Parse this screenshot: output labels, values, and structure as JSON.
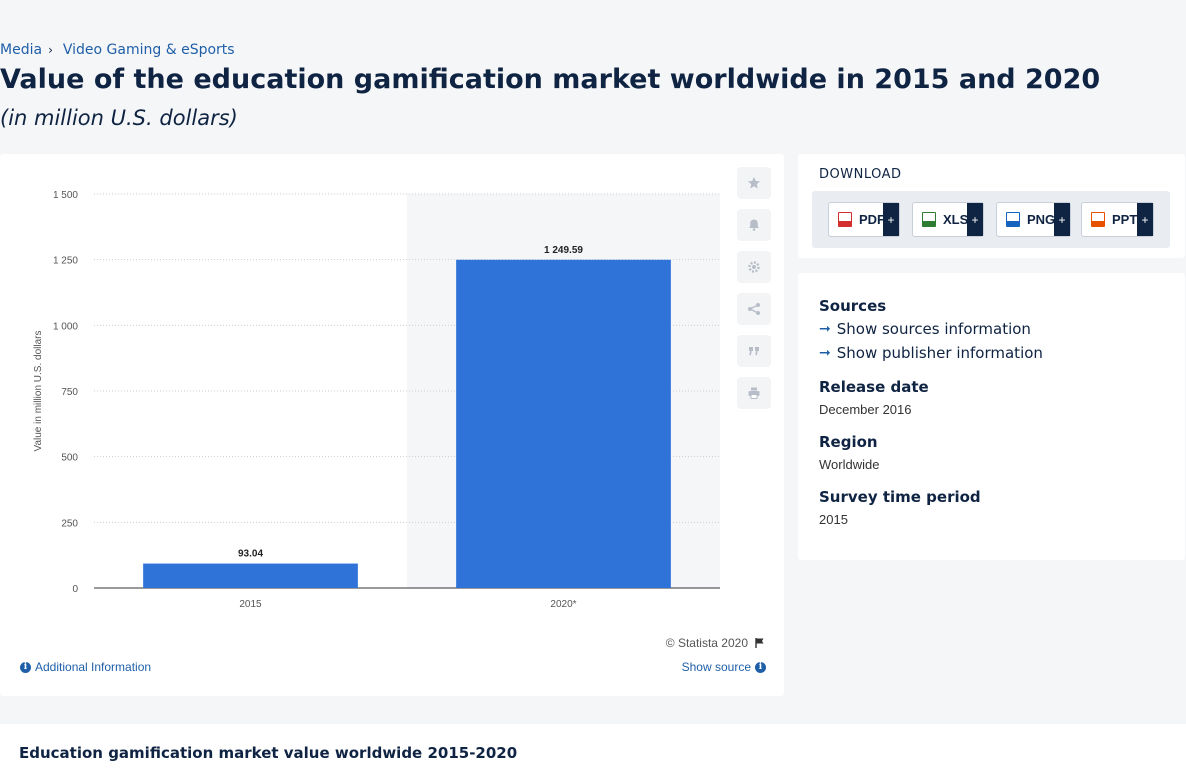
{
  "breadcrumb": {
    "items": [
      "Media",
      "Video Gaming & eSports"
    ]
  },
  "title": "Value of the education gamification market worldwide in 2015 and 2020",
  "subtitle": "(in million U.S. dollars)",
  "toolbar": {
    "icons": [
      "star-icon",
      "bell-icon",
      "gear-icon",
      "share-icon",
      "quote-icon",
      "print-icon"
    ]
  },
  "footer": {
    "copyright": "© Statista 2020",
    "additional_info": "Additional Information",
    "show_source": "Show source"
  },
  "download": {
    "title": "DOWNLOAD",
    "buttons": [
      {
        "label": "PDF",
        "color": "#d32f2f"
      },
      {
        "label": "XLS",
        "color": "#2e7d32"
      },
      {
        "label": "PNG",
        "color": "#1565c0"
      },
      {
        "label": "PPT",
        "color": "#e65100"
      }
    ],
    "plus": "+"
  },
  "info": {
    "sources_label": "Sources",
    "show_sources": "Show sources information",
    "show_publisher": "Show publisher information",
    "release_label": "Release date",
    "release_value": "December 2016",
    "region_label": "Region",
    "region_value": "Worldwide",
    "survey_label": "Survey time period",
    "survey_value": "2015"
  },
  "bottom": {
    "title": "Education gamification market value worldwide 2015-2020"
  },
  "colors": {
    "bar": "#2f73d9",
    "accent": "#1f5fa8",
    "navy": "#0f2342"
  },
  "chart_data": {
    "type": "bar",
    "categories": [
      "2015",
      "2020*"
    ],
    "values": [
      93.04,
      1249.59
    ],
    "value_labels": [
      "93.04",
      "1 249.59"
    ],
    "ylabel": "Value in million U.S. dollars",
    "ylim": [
      0,
      1500
    ],
    "yticks": [
      0,
      250,
      500,
      750,
      1000,
      1250,
      1500
    ],
    "ytick_labels": [
      "0",
      "250",
      "500",
      "750",
      "1 000",
      "1 250",
      "1 500"
    ],
    "grid": true,
    "legend": "none"
  }
}
